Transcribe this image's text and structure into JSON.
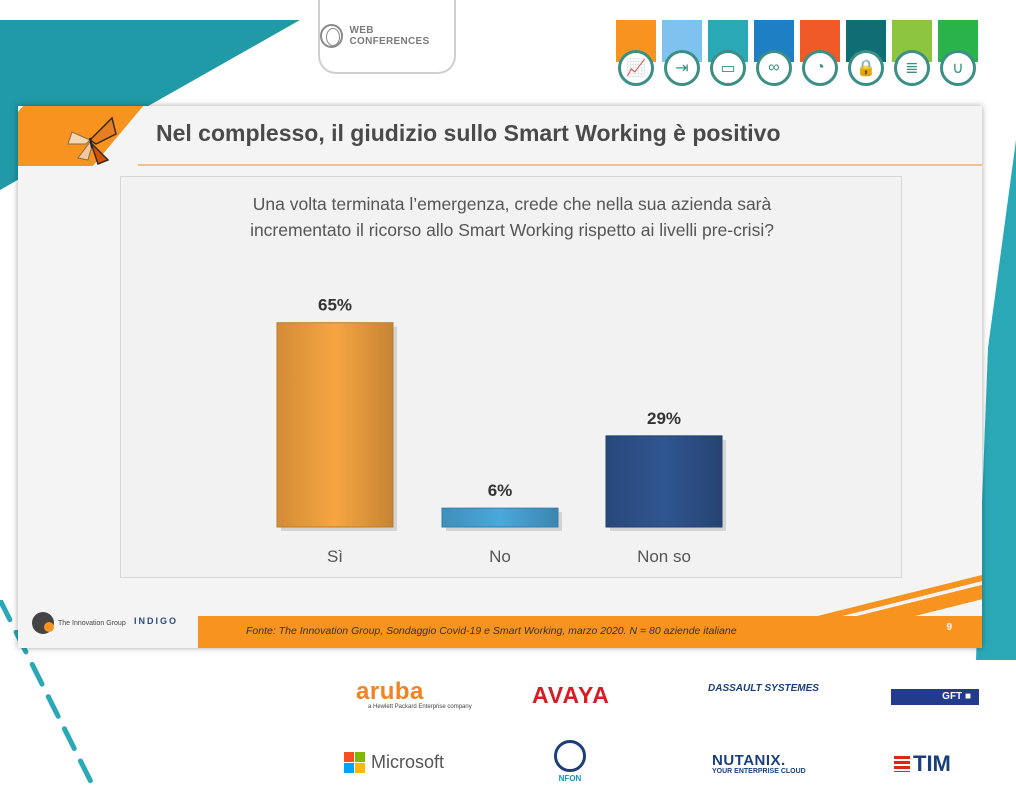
{
  "header": {
    "badge_label": "WEB CONFERENCES",
    "tabs": [
      {
        "icon": "growth-chart-icon",
        "color": "#f7931e",
        "glyph": "📈"
      },
      {
        "icon": "exit-door-icon",
        "color": "#7ec3f0",
        "glyph": "⇥"
      },
      {
        "icon": "laptop-icon",
        "color": "#2aa8b6",
        "glyph": "▭"
      },
      {
        "icon": "link-icon",
        "color": "#1f7fc4",
        "glyph": "∞"
      },
      {
        "icon": "satellite-dish-icon",
        "color": "#f05a28",
        "glyph": "◔"
      },
      {
        "icon": "lock-shield-icon",
        "color": "#0f6d74",
        "glyph": "🔒"
      },
      {
        "icon": "server-icon",
        "color": "#8cc63f",
        "glyph": "≣"
      },
      {
        "icon": "stethoscope-icon",
        "color": "#2ab34a",
        "glyph": "∪"
      }
    ]
  },
  "slide": {
    "title": "Nel complesso, il giudizio sullo Smart Working è positivo",
    "question_line1": "Una volta terminata l’emergenza, crede che nella sua azienda sarà",
    "question_line2": "incrementato il ricorso allo Smart Working rispetto ai livelli pre-crisi?",
    "source": "Fonte: The Innovation Group, Sondaggio Covid-19 e Smart Working, marzo 2020. N = 80  aziende italiane",
    "page_number": "9",
    "logo_left": "The Innovation Group",
    "logo_right": "INDIGO"
  },
  "chart_data": {
    "type": "bar",
    "categories": [
      "Sì",
      "No",
      "Non so"
    ],
    "values": [
      65,
      6,
      29
    ],
    "data_labels": [
      "65%",
      "6%",
      "29%"
    ],
    "unit": "%",
    "colors": [
      "#f7a541",
      "#4aa8dc",
      "#2f5590"
    ],
    "ylim": [
      0,
      70
    ],
    "grid": false,
    "legend": "none",
    "title": "",
    "xlabel": "",
    "ylabel": ""
  },
  "sponsors": {
    "aruba": "aruba",
    "aruba_sub": "a Hewlett Packard Enterprise company",
    "avaya": "AVAYA",
    "dassault": "DASSAULT SYSTEMES",
    "gft": "GFT ■",
    "microsoft": "Microsoft",
    "nfon": "NFON",
    "nutanix": "NUTANIX.",
    "nutanix_sub": "YOUR ENTERPRISE CLOUD",
    "tim": "TIM"
  }
}
